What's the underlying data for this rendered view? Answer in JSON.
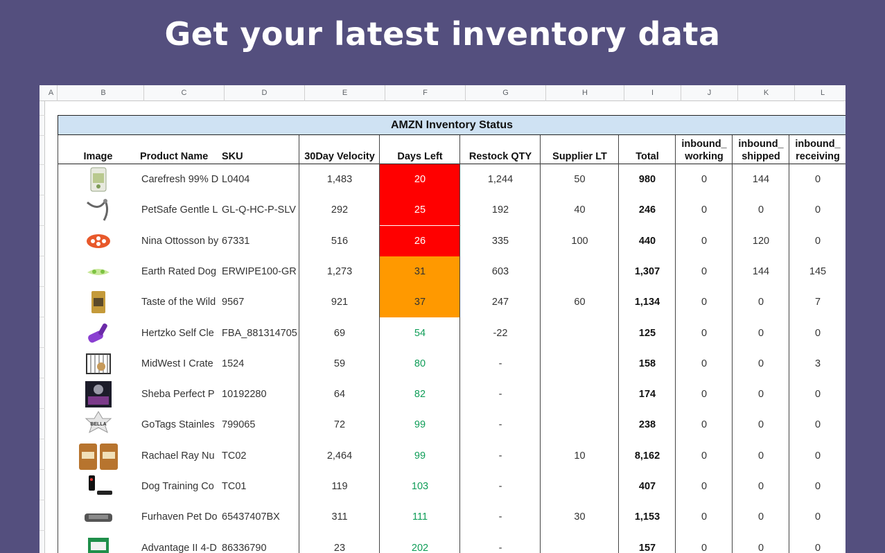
{
  "headline": "Get your latest inventory data",
  "columns": [
    "A",
    "B",
    "C",
    "D",
    "E",
    "F",
    "G",
    "H",
    "I",
    "J",
    "K",
    "L"
  ],
  "table_title": "AMZN Inventory Status",
  "headers": {
    "image": "Image",
    "product_name": "Product Name",
    "sku": "SKU",
    "velocity": "30Day Velocity",
    "days_left": "Days Left",
    "restock": "Restock QTY",
    "supplier_lt": "Supplier LT",
    "total": "Total",
    "inbound_working_1": "inbound_",
    "inbound_working_2": "working",
    "inbound_shipped_1": "inbound_",
    "inbound_shipped_2": "shipped",
    "inbound_receiving_1": "inbound_",
    "inbound_receiving_2": "receiving"
  },
  "status_colors": {
    "critical": "#ff0000",
    "warning": "#ff9900",
    "ok_text": "#0f9d58"
  },
  "rows": [
    {
      "image": "litter-bag-icon",
      "name": "Carefresh 99% D",
      "sku": "L0404",
      "velocity": "1,483",
      "days": "20",
      "status": "critical",
      "restock": "1,244",
      "lt": "50",
      "total": "980",
      "working": "0",
      "shipped": "144",
      "receiving": "0"
    },
    {
      "image": "leash-icon",
      "name": "PetSafe Gentle L",
      "sku": "GL-Q-HC-P-SLV",
      "velocity": "292",
      "days": "25",
      "status": "critical",
      "restock": "192",
      "lt": "40",
      "total": "246",
      "working": "0",
      "shipped": "0",
      "receiving": "0"
    },
    {
      "image": "puzzle-toy-icon",
      "name": "Nina Ottosson by",
      "sku": "67331",
      "velocity": "516",
      "days": "26",
      "status": "critical",
      "restock": "335",
      "lt": "100",
      "total": "440",
      "working": "0",
      "shipped": "120",
      "receiving": "0"
    },
    {
      "image": "wipes-icon",
      "name": "Earth Rated Dog",
      "sku": "ERWIPE100-GR",
      "velocity": "1,273",
      "days": "31",
      "status": "warning",
      "restock": "603",
      "lt": "",
      "total": "1,307",
      "working": "0",
      "shipped": "144",
      "receiving": "145"
    },
    {
      "image": "food-bag-icon",
      "name": "Taste of the Wild",
      "sku": "9567",
      "velocity": "921",
      "days": "37",
      "status": "warning",
      "restock": "247",
      "lt": "60",
      "total": "1,134",
      "working": "0",
      "shipped": "0",
      "receiving": "7"
    },
    {
      "image": "brush-icon",
      "name": "Hertzko Self Cle",
      "sku": "FBA_881314705",
      "velocity": "69",
      "days": "54",
      "status": "ok",
      "restock": "-22",
      "lt": "",
      "total": "125",
      "working": "0",
      "shipped": "0",
      "receiving": "0"
    },
    {
      "image": "crate-icon",
      "name": "MidWest I Crate",
      "sku": "1524",
      "velocity": "59",
      "days": "80",
      "status": "ok",
      "restock": "-",
      "lt": "",
      "total": "158",
      "working": "0",
      "shipped": "0",
      "receiving": "3"
    },
    {
      "image": "cat-food-box-icon",
      "name": "Sheba Perfect P",
      "sku": "10192280",
      "velocity": "64",
      "days": "82",
      "status": "ok",
      "restock": "-",
      "lt": "",
      "total": "174",
      "working": "0",
      "shipped": "0",
      "receiving": "0"
    },
    {
      "image": "pet-tag-icon",
      "name": "GoTags Stainles",
      "sku": "799065",
      "velocity": "72",
      "days": "99",
      "status": "ok",
      "restock": "-",
      "lt": "",
      "total": "238",
      "working": "0",
      "shipped": "0",
      "receiving": "0"
    },
    {
      "image": "treat-bags-icon",
      "name": "Rachael Ray Nu",
      "sku": "TC02",
      "velocity": "2,464",
      "days": "99",
      "status": "ok",
      "restock": "-",
      "lt": "10",
      "total": "8,162",
      "working": "0",
      "shipped": "0",
      "receiving": "0"
    },
    {
      "image": "training-collar-icon",
      "name": "Dog Training Co",
      "sku": "TC01",
      "velocity": "119",
      "days": "103",
      "status": "ok",
      "restock": "-",
      "lt": "",
      "total": "407",
      "working": "0",
      "shipped": "0",
      "receiving": "0"
    },
    {
      "image": "pet-bed-icon",
      "name": "Furhaven Pet Do",
      "sku": "65437407BX",
      "velocity": "311",
      "days": "111",
      "status": "ok",
      "restock": "-",
      "lt": "30",
      "total": "1,153",
      "working": "0",
      "shipped": "0",
      "receiving": "0"
    },
    {
      "image": "medicine-box-icon",
      "name": "Advantage II 4-D",
      "sku": "86336790",
      "velocity": "23",
      "days": "202",
      "status": "ok",
      "restock": "-",
      "lt": "",
      "total": "157",
      "working": "0",
      "shipped": "0",
      "receiving": "0"
    }
  ]
}
